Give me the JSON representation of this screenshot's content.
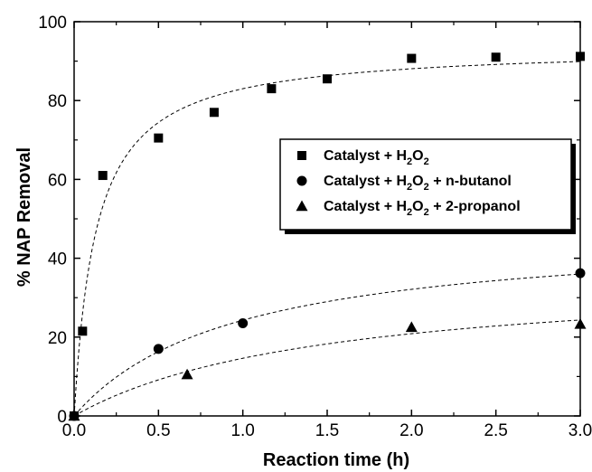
{
  "chart_data": {
    "type": "scatter",
    "xlabel": "Reaction time (h)",
    "ylabel": "% NAP Removal",
    "xlim": [
      0,
      3
    ],
    "ylim": [
      0,
      100
    ],
    "x_ticks": [
      "0.0",
      "0.5",
      "1.0",
      "1.5",
      "2.0",
      "2.5",
      "3.0"
    ],
    "y_ticks": [
      "0",
      "20",
      "40",
      "60",
      "80",
      "100"
    ],
    "grid": false,
    "legend_position": "center-right",
    "series": [
      {
        "legend": [
          "Catalyst + H",
          "2",
          "O",
          "2",
          ""
        ],
        "marker": "square",
        "x": [
          0,
          0.05,
          0.17,
          0.5,
          0.83,
          1.17,
          1.5,
          2.0,
          2.5,
          3.0
        ],
        "y": [
          0,
          21.5,
          61,
          70.5,
          77,
          83,
          85.5,
          90.7,
          91,
          91.2
        ],
        "fit": "dashed"
      },
      {
        "legend": [
          "Catalyst + H",
          "2",
          "O",
          "2",
          " + n-butanol"
        ],
        "marker": "circle",
        "x": [
          0,
          0.5,
          1.0,
          3.0
        ],
        "y": [
          0,
          17,
          23.5,
          36.2
        ],
        "fit": "dashed"
      },
      {
        "legend": [
          "Catalyst + H",
          "2",
          "O",
          "2",
          " + 2-propanol"
        ],
        "marker": "triangle",
        "x": [
          0,
          0.67,
          2.0,
          3.0
        ],
        "y": [
          0,
          10.5,
          22.5,
          23.3
        ],
        "fit": "dashed"
      }
    ]
  }
}
